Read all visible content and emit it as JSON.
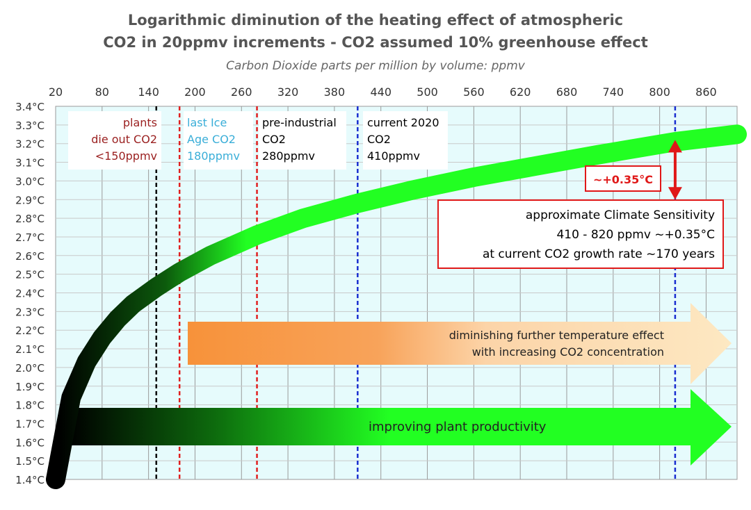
{
  "chart_data": {
    "type": "line",
    "title_line1": "Logarithmic diminution of the heating effect of atmospheric",
    "title_line2": "CO2 in 20ppmv increments - CO2 assumed 10% greenhouse effect",
    "xlabel": "Carbon Dioxide parts per million by volume: ppmv",
    "x_ticks": [
      "20",
      "80",
      "140",
      "200",
      "260",
      "320",
      "380",
      "440",
      "500",
      "560",
      "620",
      "680",
      "740",
      "800",
      "860"
    ],
    "y_ticks": [
      "3.4°C",
      "3.3°C",
      "3.2°C",
      "3.1°C",
      "3.0°C",
      "2.9°C",
      "2.8°C",
      "2.7°C",
      "2.6°C",
      "2.5°C",
      "2.4°C",
      "2.3°C",
      "2.2°C",
      "2.1°C",
      "2.0°C",
      "1.9°C",
      "1.8°C",
      "1.7°C",
      "1.6°C",
      "1.5°C",
      "1.4°C"
    ],
    "xlim": [
      20,
      900
    ],
    "ylim": [
      1.4,
      3.4
    ],
    "series": [
      {
        "name": "heating effect",
        "x": [
          20,
          30,
          40,
          60,
          80,
          100,
          120,
          150,
          180,
          220,
          280,
          340,
          410,
          480,
          560,
          640,
          720,
          820,
          900
        ],
        "y": [
          1.4,
          1.62,
          1.84,
          2.03,
          2.16,
          2.26,
          2.34,
          2.43,
          2.51,
          2.6,
          2.71,
          2.8,
          2.88,
          2.95,
          3.02,
          3.08,
          3.14,
          3.21,
          3.25
        ]
      }
    ],
    "markers": [
      {
        "x": 150,
        "color": "#000000",
        "lines": [
          "plants",
          "die out CO2",
          "<150ppmv"
        ],
        "text_color": "#9a1f1f"
      },
      {
        "x": 180,
        "color": "#e02020",
        "lines": [
          "last Ice",
          "Age CO2",
          "180ppmv"
        ],
        "text_color": "#3aaed8"
      },
      {
        "x": 280,
        "color": "#e02020",
        "lines": [
          "pre-industrial",
          "CO2",
          "280ppmv"
        ],
        "text_color": "#000000"
      },
      {
        "x": 410,
        "color": "#1a2ed0",
        "lines": [
          "current 2020",
          "CO2",
          "410ppmv"
        ],
        "text_color": "#000000"
      },
      {
        "x": 820,
        "color": "#1a2ed0",
        "lines": [],
        "text_color": "#000000"
      }
    ],
    "sensitivity": {
      "label": "~+0.35°C",
      "box_lines": [
        "approximate Climate Sensitivity",
        "410 - 820 ppmv  ~+0.35°C",
        "at current CO2 growth rate ~170 years"
      ],
      "from_y": 2.9,
      "to_y": 3.22
    },
    "arrows": [
      {
        "lines": [
          "diminishing further temperature effect",
          "with increasing CO2 concentration"
        ]
      },
      {
        "lines": [
          "improving plant productivity"
        ]
      }
    ],
    "colors": {
      "plot_bg": "#e6fbfc",
      "grid": "#9a9a9a",
      "curve_green": "#22ff22",
      "curve_dark": "#000000",
      "orange_start": "#f7923a",
      "orange_end": "#fde8c2",
      "title": "#555555",
      "red": "#e01818",
      "blue": "#1a2ed0"
    }
  }
}
